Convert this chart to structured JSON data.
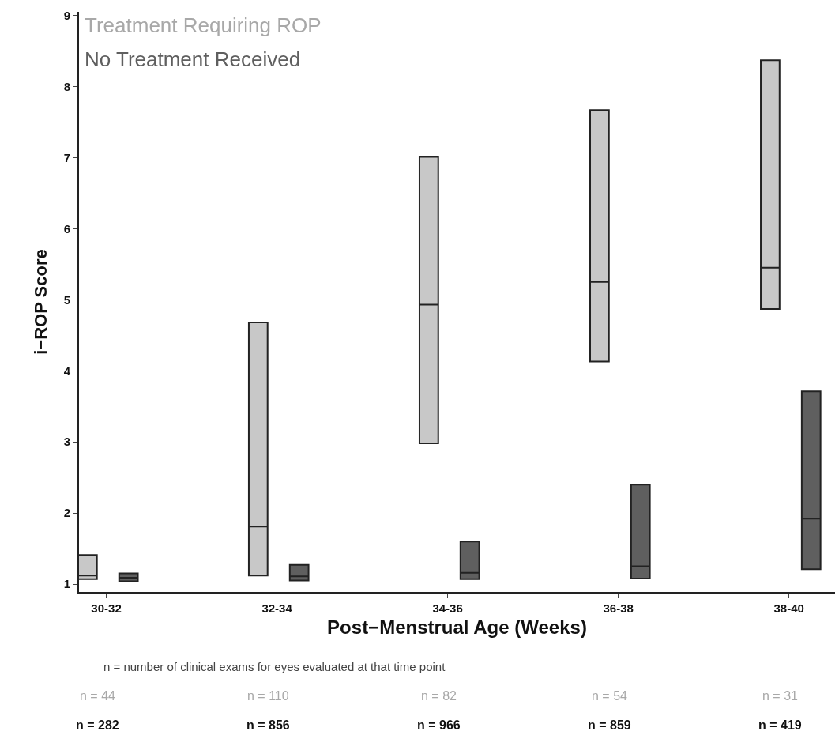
{
  "chart_data": {
    "type": "box",
    "xlabel": "Post−Menstrual Age (Weeks)",
    "ylabel": "i−ROP Score",
    "categories": [
      "30-32",
      "32-34",
      "34-36",
      "36-38",
      "38-40"
    ],
    "series": [
      {
        "name": "Treatment Requiring ROP",
        "color": "#c8c8c8",
        "boxes": [
          {
            "low": 1.07,
            "q1": 1.07,
            "median": 1.12,
            "q3": 1.41,
            "high": 1.41
          },
          {
            "low": 1.12,
            "q1": 1.12,
            "median": 1.81,
            "q3": 4.68,
            "high": 4.68
          },
          {
            "low": 2.98,
            "q1": 2.98,
            "median": 4.93,
            "q3": 7.01,
            "high": 7.01
          },
          {
            "low": 4.13,
            "q1": 4.13,
            "median": 5.25,
            "q3": 7.67,
            "high": 7.67
          },
          {
            "low": 4.87,
            "q1": 4.87,
            "median": 5.45,
            "q3": 8.37,
            "high": 8.37
          }
        ]
      },
      {
        "name": "No Treatment Received",
        "color": "#5f5f5f",
        "boxes": [
          {
            "low": 1.04,
            "q1": 1.04,
            "median": 1.09,
            "q3": 1.15,
            "high": 1.15
          },
          {
            "low": 1.05,
            "q1": 1.05,
            "median": 1.11,
            "q3": 1.27,
            "high": 1.27
          },
          {
            "low": 1.07,
            "q1": 1.07,
            "median": 1.16,
            "q3": 1.6,
            "high": 1.6
          },
          {
            "low": 1.08,
            "q1": 1.08,
            "median": 1.25,
            "q3": 2.4,
            "high": 2.4
          },
          {
            "low": 1.21,
            "q1": 1.21,
            "median": 1.92,
            "q3": 3.71,
            "high": 3.71
          }
        ]
      }
    ],
    "ylim": [
      0.89,
      9.05
    ],
    "yticks": [
      1,
      2,
      3,
      4,
      5,
      6,
      7,
      8,
      9
    ],
    "legend": "top left",
    "annotations": [
      "n = number of clinical exams for eyes evaluated at that time point",
      "n = 44",
      "n = 110",
      "n = 82",
      "n = 54",
      "n = 31",
      "n = 282",
      "n = 856",
      "n = 966",
      "n = 859",
      "n = 419"
    ]
  }
}
